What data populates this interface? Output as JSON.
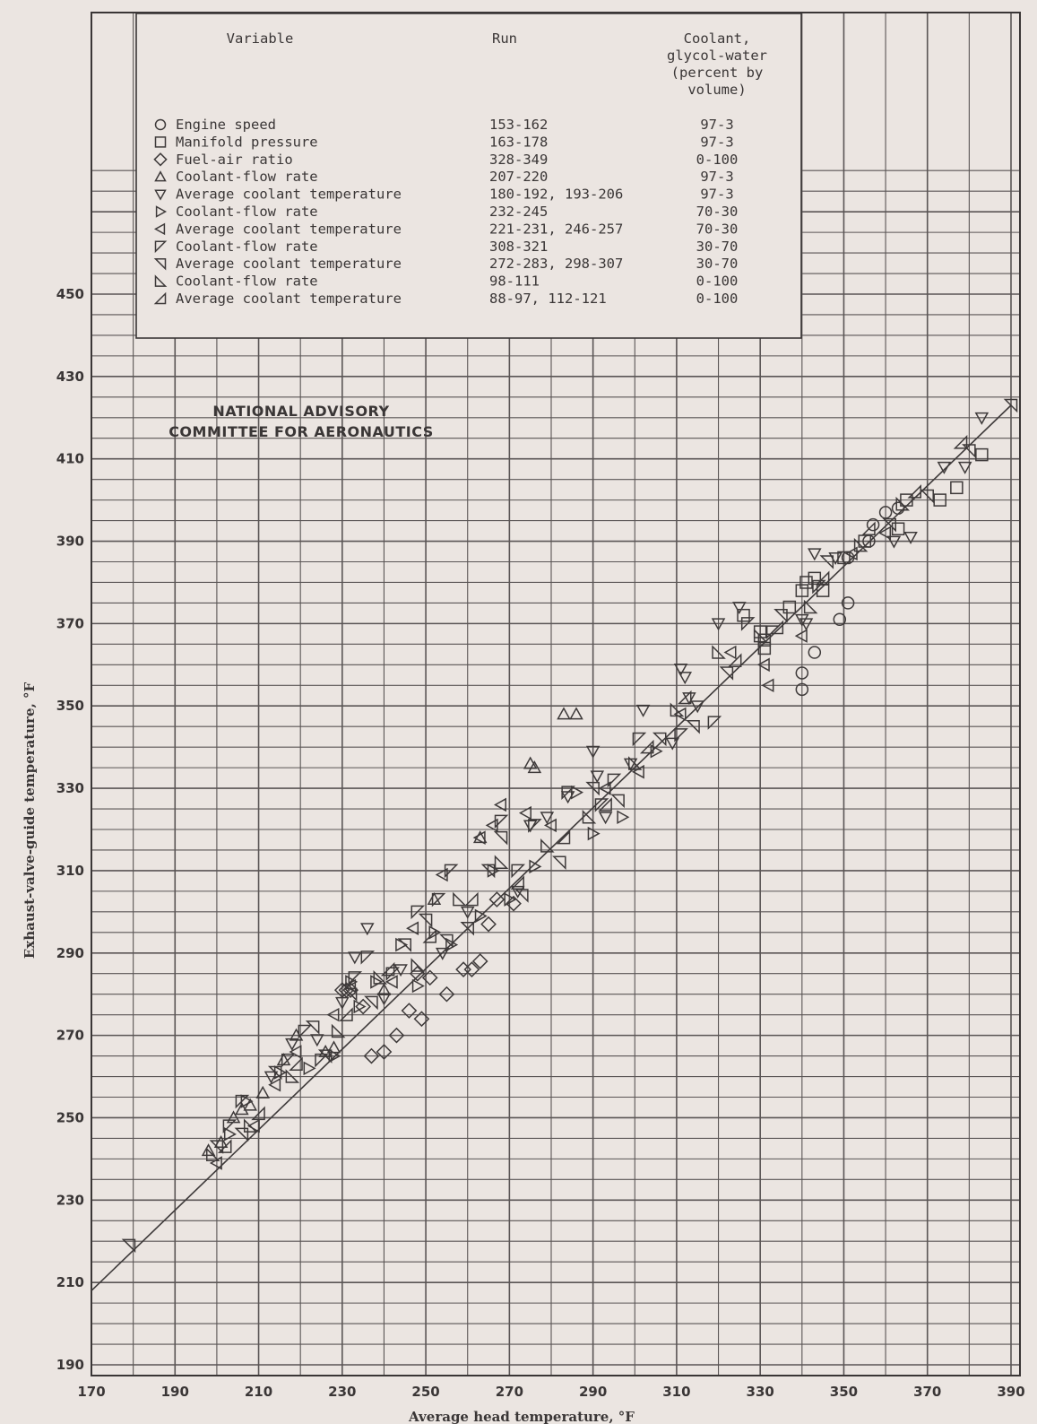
{
  "chart_data": {
    "type": "scatter",
    "xlabel": "Average head temperature, °F",
    "ylabel": "Exhaust-valve-guide temperature, °F",
    "xlim": [
      170,
      390
    ],
    "ylim": [
      190,
      450
    ],
    "x_ticks": [
      "170",
      "190",
      "210",
      "230",
      "250",
      "270",
      "290",
      "310",
      "330",
      "350",
      "370",
      "390"
    ],
    "y_ticks": [
      "190",
      "210",
      "230",
      "250",
      "270",
      "290",
      "310",
      "330",
      "350",
      "370",
      "390",
      "410",
      "430",
      "450"
    ],
    "grid": true,
    "annotation": [
      "NATIONAL ADVISORY",
      "COMMITTEE FOR AERONAUTICS"
    ],
    "fit_line": {
      "x": [
        170,
        390
      ],
      "y": [
        208,
        423
      ]
    },
    "legend": {
      "placement": "top-left",
      "headers": {
        "variable": "Variable",
        "run": "Run",
        "coolant": [
          "Coolant,",
          "glycol-water",
          "(percent by",
          "volume)"
        ]
      },
      "entries": [
        {
          "symbol": "circle",
          "variable": "Engine speed",
          "run": "153-162",
          "coolant": "97-3"
        },
        {
          "symbol": "square",
          "variable": "Manifold pressure",
          "run": "163-178",
          "coolant": "97-3"
        },
        {
          "symbol": "diamond",
          "variable": "Fuel-air ratio",
          "run": "328-349",
          "coolant": "0-100"
        },
        {
          "symbol": "triangle-up",
          "variable": "Coolant-flow rate",
          "run": "207-220",
          "coolant": "97-3"
        },
        {
          "symbol": "triangle-down",
          "variable": "Average coolant temperature",
          "run": "180-192, 193-206",
          "coolant": "97-3"
        },
        {
          "symbol": "triangle-right",
          "variable": "Coolant-flow rate",
          "run": "232-245",
          "coolant": "70-30"
        },
        {
          "symbol": "triangle-left",
          "variable": "Average coolant temperature",
          "run": "221-231, 246-257",
          "coolant": "70-30"
        },
        {
          "symbol": "flag-down",
          "variable": "Coolant-flow rate",
          "run": "308-321",
          "coolant": "30-70"
        },
        {
          "symbol": "flag-left",
          "variable": "Average coolant temperature",
          "run": "272-283, 298-307",
          "coolant": "30-70"
        },
        {
          "symbol": "flag-up-left",
          "variable": "Coolant-flow rate",
          "run": "98-111",
          "coolant": "0-100"
        },
        {
          "symbol": "flag-up-right",
          "variable": "Average coolant temperature",
          "run": "88-97, 112-121",
          "coolant": "0-100"
        }
      ]
    },
    "series": [
      {
        "name": "circle",
        "points": [
          [
            340,
            358
          ],
          [
            340,
            354
          ],
          [
            343,
            363
          ],
          [
            349,
            371
          ],
          [
            351,
            375
          ],
          [
            351,
            386
          ],
          [
            356,
            390
          ],
          [
            357,
            394
          ],
          [
            360,
            397
          ],
          [
            363,
            398
          ]
        ]
      },
      {
        "name": "square",
        "points": [
          [
            326,
            372
          ],
          [
            330,
            368
          ],
          [
            331,
            366
          ],
          [
            331,
            364
          ],
          [
            337,
            374
          ],
          [
            340,
            378
          ],
          [
            341,
            380
          ],
          [
            343,
            381
          ],
          [
            345,
            378
          ],
          [
            350,
            386
          ],
          [
            355,
            390
          ],
          [
            363,
            393
          ],
          [
            365,
            400
          ],
          [
            373,
            400
          ],
          [
            377,
            403
          ],
          [
            383,
            411
          ]
        ]
      },
      {
        "name": "diamond",
        "points": [
          [
            230,
            281
          ],
          [
            231,
            281
          ],
          [
            232,
            281
          ],
          [
            235,
            277
          ],
          [
            237,
            265
          ],
          [
            240,
            266
          ],
          [
            243,
            270
          ],
          [
            246,
            276
          ],
          [
            248,
            285
          ],
          [
            249,
            274
          ],
          [
            251,
            284
          ],
          [
            255,
            280
          ],
          [
            259,
            286
          ],
          [
            261,
            286
          ],
          [
            263,
            288
          ],
          [
            265,
            297
          ],
          [
            267,
            303
          ],
          [
            271,
            302
          ]
        ]
      },
      {
        "name": "triangle-up",
        "points": [
          [
            198,
            242
          ],
          [
            201,
            244
          ],
          [
            204,
            250
          ],
          [
            206,
            252
          ],
          [
            208,
            253
          ],
          [
            211,
            256
          ],
          [
            216,
            264
          ],
          [
            219,
            270
          ],
          [
            226,
            266
          ],
          [
            228,
            267
          ],
          [
            240,
            281
          ],
          [
            252,
            303
          ],
          [
            263,
            318
          ],
          [
            275,
            336
          ],
          [
            276,
            335
          ],
          [
            283,
            348
          ],
          [
            286,
            348
          ]
        ]
      },
      {
        "name": "triangle-down",
        "points": [
          [
            213,
            260
          ],
          [
            218,
            268
          ],
          [
            224,
            269
          ],
          [
            230,
            278
          ],
          [
            233,
            289
          ],
          [
            236,
            296
          ],
          [
            240,
            279
          ],
          [
            244,
            286
          ],
          [
            254,
            290
          ],
          [
            260,
            300
          ],
          [
            272,
            305
          ],
          [
            275,
            321
          ],
          [
            279,
            323
          ],
          [
            284,
            328
          ],
          [
            290,
            339
          ],
          [
            291,
            333
          ],
          [
            293,
            323
          ],
          [
            299,
            336
          ],
          [
            302,
            349
          ],
          [
            309,
            341
          ],
          [
            311,
            359
          ],
          [
            312,
            357
          ],
          [
            313,
            352
          ],
          [
            315,
            350
          ],
          [
            320,
            370
          ],
          [
            325,
            374
          ],
          [
            340,
            371
          ],
          [
            341,
            370
          ],
          [
            343,
            387
          ],
          [
            348,
            386
          ],
          [
            362,
            390
          ],
          [
            366,
            391
          ],
          [
            374,
            408
          ],
          [
            379,
            408
          ],
          [
            383,
            420
          ]
        ]
      },
      {
        "name": "triangle-right",
        "points": [
          [
            203,
            246
          ],
          [
            207,
            254
          ],
          [
            215,
            261
          ],
          [
            222,
            262
          ],
          [
            228,
            265
          ],
          [
            232,
            283
          ],
          [
            234,
            277
          ],
          [
            238,
            283
          ],
          [
            244,
            292
          ],
          [
            248,
            282
          ],
          [
            252,
            295
          ],
          [
            256,
            292
          ],
          [
            263,
            299
          ],
          [
            266,
            310
          ],
          [
            270,
            303
          ],
          [
            276,
            311
          ],
          [
            286,
            329
          ],
          [
            290,
            319
          ],
          [
            297,
            323
          ],
          [
            305,
            339
          ]
        ]
      },
      {
        "name": "triangle-left",
        "points": [
          [
            200,
            239
          ],
          [
            209,
            248
          ],
          [
            214,
            258
          ],
          [
            219,
            266
          ],
          [
            228,
            275
          ],
          [
            232,
            282
          ],
          [
            242,
            283
          ],
          [
            247,
            296
          ],
          [
            254,
            309
          ],
          [
            263,
            318
          ],
          [
            266,
            321
          ],
          [
            268,
            326
          ],
          [
            274,
            324
          ],
          [
            280,
            321
          ],
          [
            293,
            330
          ],
          [
            301,
            334
          ],
          [
            311,
            348
          ],
          [
            323,
            363
          ],
          [
            331,
            360
          ],
          [
            332,
            355
          ],
          [
            340,
            367
          ],
          [
            352,
            387
          ],
          [
            360,
            392
          ]
        ]
      },
      {
        "name": "flag-down",
        "points": [
          [
            203,
            248
          ],
          [
            206,
            254
          ],
          [
            217,
            264
          ],
          [
            221,
            271
          ],
          [
            225,
            264
          ],
          [
            233,
            284
          ],
          [
            236,
            289
          ],
          [
            242,
            285
          ],
          [
            248,
            300
          ],
          [
            253,
            303
          ],
          [
            256,
            310
          ],
          [
            268,
            322
          ],
          [
            272,
            310
          ],
          [
            276,
            321
          ],
          [
            284,
            329
          ],
          [
            292,
            326
          ],
          [
            295,
            332
          ],
          [
            301,
            342
          ],
          [
            311,
            343
          ],
          [
            319,
            346
          ],
          [
            327,
            370
          ],
          [
            333,
            368
          ],
          [
            344,
            379
          ]
        ]
      },
      {
        "name": "flag-left",
        "points": [
          [
            179,
            219
          ],
          [
            200,
            243
          ],
          [
            206,
            246
          ],
          [
            214,
            261
          ],
          [
            223,
            272
          ],
          [
            226,
            265
          ],
          [
            232,
            280
          ],
          [
            237,
            278
          ],
          [
            245,
            292
          ],
          [
            250,
            298
          ],
          [
            255,
            293
          ],
          [
            260,
            296
          ],
          [
            265,
            310
          ],
          [
            268,
            318
          ],
          [
            273,
            304
          ],
          [
            282,
            312
          ],
          [
            290,
            330
          ],
          [
            296,
            327
          ],
          [
            306,
            342
          ],
          [
            314,
            345
          ],
          [
            322,
            358
          ],
          [
            335,
            372
          ],
          [
            346,
            385
          ],
          [
            361,
            394
          ],
          [
            370,
            401
          ],
          [
            380,
            412
          ],
          [
            390,
            423
          ]
        ]
      },
      {
        "name": "flag-up-left",
        "points": [
          [
            199,
            241
          ],
          [
            208,
            248
          ],
          [
            218,
            260
          ],
          [
            229,
            271
          ],
          [
            239,
            284
          ],
          [
            248,
            287
          ],
          [
            258,
            303
          ],
          [
            268,
            312
          ],
          [
            279,
            316
          ],
          [
            289,
            323
          ],
          [
            300,
            336
          ],
          [
            310,
            349
          ],
          [
            320,
            363
          ],
          [
            330,
            367
          ],
          [
            342,
            374
          ],
          [
            354,
            389
          ],
          [
            364,
            399
          ]
        ]
      },
      {
        "name": "flag-up-right",
        "points": [
          [
            202,
            243
          ],
          [
            210,
            251
          ],
          [
            219,
            263
          ],
          [
            231,
            275
          ],
          [
            241,
            286
          ],
          [
            251,
            294
          ],
          [
            261,
            303
          ],
          [
            272,
            307
          ],
          [
            283,
            318
          ],
          [
            293,
            326
          ],
          [
            303,
            340
          ],
          [
            312,
            352
          ],
          [
            324,
            361
          ],
          [
            334,
            369
          ],
          [
            345,
            381
          ],
          [
            356,
            393
          ],
          [
            367,
            402
          ],
          [
            378,
            414
          ]
        ]
      }
    ]
  }
}
